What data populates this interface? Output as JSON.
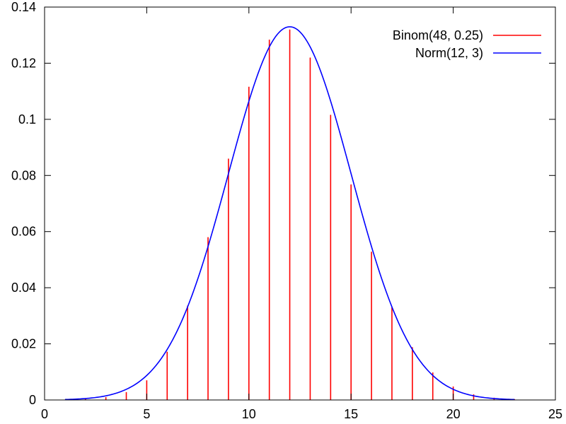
{
  "chart_data": {
    "type": "line",
    "title": "",
    "xlabel": "",
    "ylabel": "",
    "xlim": [
      0,
      25
    ],
    "ylim": [
      0,
      0.14
    ],
    "xticks": [
      "0",
      "5",
      "10",
      "15",
      "20",
      "25"
    ],
    "yticks": [
      "0",
      "0.02",
      "0.04",
      "0.06",
      "0.08",
      "0.1",
      "0.12",
      "0.14"
    ],
    "grid": false,
    "legend_position": "top-right",
    "series": [
      {
        "name": "Binom(48, 0.25)",
        "style": "impulses",
        "color": "#ff0000",
        "x": [
          1,
          2,
          3,
          4,
          5,
          6,
          7,
          8,
          9,
          10,
          11,
          12,
          13,
          14,
          15,
          16,
          17,
          18,
          19,
          20,
          21,
          22,
          23
        ],
        "y": [
          0.0001,
          0.0004,
          0.001,
          0.0028,
          0.007,
          0.0172,
          0.0336,
          0.058,
          0.086,
          0.1116,
          0.1284,
          0.132,
          0.122,
          0.1016,
          0.0768,
          0.0528,
          0.033,
          0.0188,
          0.0098,
          0.0048,
          0.002,
          0.0008,
          0.0003
        ]
      },
      {
        "name": "Norm(12, 3)",
        "style": "line",
        "color": "#0000ff",
        "function": "normal_pdf",
        "mean": 12,
        "sd": 3,
        "x_range": [
          1,
          23
        ]
      }
    ]
  }
}
